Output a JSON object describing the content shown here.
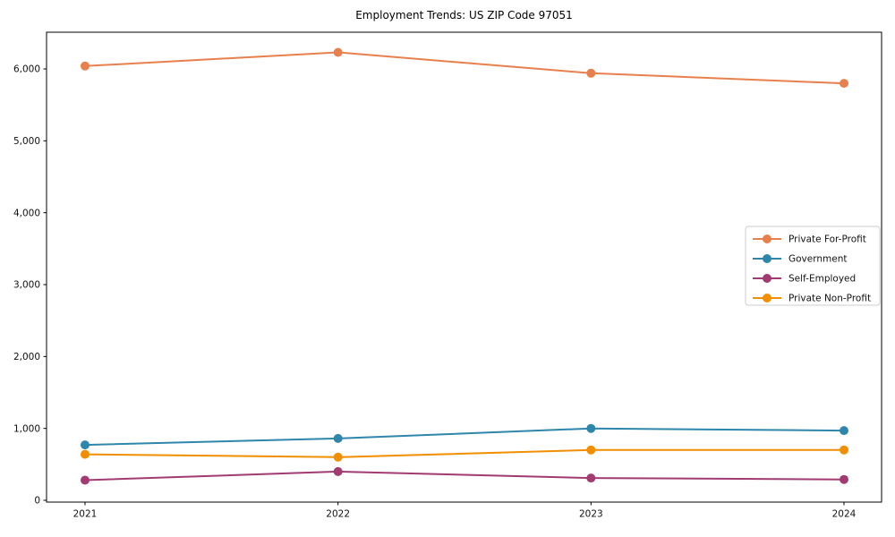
{
  "figure": {
    "background": "#ffffff",
    "axis_color": "#000000",
    "legend_border_color": "#cccccc"
  },
  "chart_data": {
    "type": "line",
    "title": "Employment Trends: US ZIP Code 97051",
    "xlabel": "",
    "ylabel": "",
    "x": [
      2021,
      2022,
      2023,
      2024
    ],
    "xtick_labels": [
      "2021",
      "2022",
      "2023",
      "2024"
    ],
    "yticks": [
      0,
      1000,
      2000,
      3000,
      4000,
      5000,
      6000
    ],
    "ytick_labels": [
      "0",
      "1,000",
      "2,000",
      "3,000",
      "4,000",
      "5,000",
      "6,000"
    ],
    "ylim": [
      0,
      6500
    ],
    "grid": false,
    "marker": "circle",
    "legend_position": "center right",
    "series": [
      {
        "name": "Private For-Profit",
        "color": "#E8804D",
        "values": [
          6040,
          6230,
          5940,
          5800
        ]
      },
      {
        "name": "Government",
        "color": "#2E86AB",
        "values": [
          770,
          860,
          1000,
          970
        ]
      },
      {
        "name": "Self-Employed",
        "color": "#A23B72",
        "values": [
          280,
          400,
          310,
          290
        ]
      },
      {
        "name": "Private Non-Profit",
        "color": "#F18F01",
        "values": [
          640,
          600,
          700,
          700
        ]
      }
    ]
  }
}
